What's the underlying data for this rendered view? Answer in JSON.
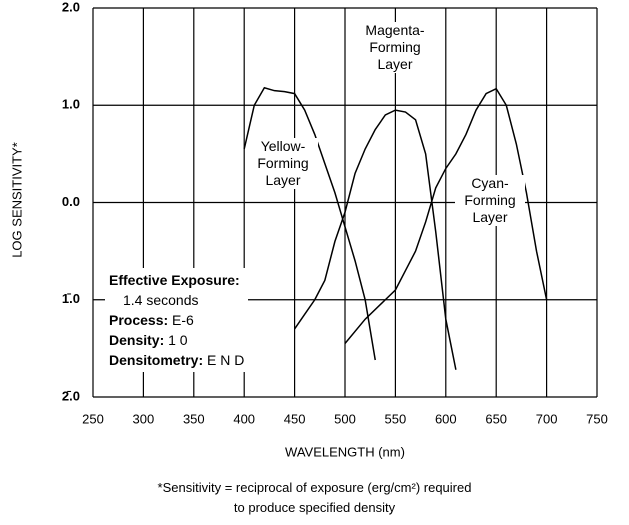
{
  "chart_data": {
    "type": "line",
    "xlabel": "WAVELENGTH (nm)",
    "ylabel": "LOG SENSITIVITY*",
    "xlim": [
      250,
      750
    ],
    "xticks": [
      250,
      300,
      350,
      400,
      450,
      500,
      550,
      600,
      650,
      700,
      750
    ],
    "ylim": [
      -2,
      2
    ],
    "yticks": [
      {
        "value": -2,
        "label": "2̄.0"
      },
      {
        "value": -1,
        "label": "1̄.0"
      },
      {
        "value": 0,
        "label": "0.0"
      },
      {
        "value": 1,
        "label": "1.0"
      },
      {
        "value": 2,
        "label": "2.0"
      }
    ],
    "grid": true,
    "series": [
      {
        "name": "Yellow-\nForming\nLayer",
        "color": "#000000",
        "x": [
          400,
          410,
          420,
          430,
          440,
          450,
          460,
          470,
          480,
          490,
          500,
          510,
          520,
          530
        ],
        "values": [
          0.55,
          1.0,
          1.18,
          1.15,
          1.14,
          1.12,
          0.95,
          0.7,
          0.4,
          0.1,
          -0.25,
          -0.6,
          -1.0,
          -1.62
        ]
      },
      {
        "name": "Magenta-\nForming\nLayer",
        "color": "#000000",
        "x": [
          450,
          460,
          470,
          480,
          490,
          500,
          510,
          520,
          530,
          540,
          550,
          560,
          570,
          580,
          590,
          600,
          610
        ],
        "values": [
          -1.3,
          -1.15,
          -1.0,
          -0.8,
          -0.4,
          -0.1,
          0.3,
          0.55,
          0.75,
          0.9,
          0.95,
          0.93,
          0.85,
          0.5,
          -0.3,
          -1.2,
          -1.72
        ]
      },
      {
        "name": "Cyan-\nForming\nLayer",
        "color": "#000000",
        "x": [
          500,
          520,
          540,
          550,
          560,
          570,
          580,
          590,
          600,
          610,
          620,
          630,
          640,
          650,
          660,
          670,
          680,
          690,
          700
        ],
        "values": [
          -1.45,
          -1.2,
          -1.0,
          -0.9,
          -0.7,
          -0.5,
          -0.2,
          0.15,
          0.35,
          0.5,
          0.7,
          0.95,
          1.12,
          1.17,
          1.0,
          0.6,
          0.1,
          -0.5,
          -1.0
        ]
      }
    ],
    "annotations": [
      {
        "label": "Effective Exposure:",
        "value": "1.4 seconds"
      },
      {
        "label": "Process:",
        "value": "E-6"
      },
      {
        "label": "Density:",
        "value": "1 0"
      },
      {
        "label": "Densitometry:",
        "value": "E N D"
      }
    ],
    "footnote": [
      "*Sensitivity = reciprocal of exposure (erg/cm²) required",
      "to produce specified density"
    ]
  }
}
